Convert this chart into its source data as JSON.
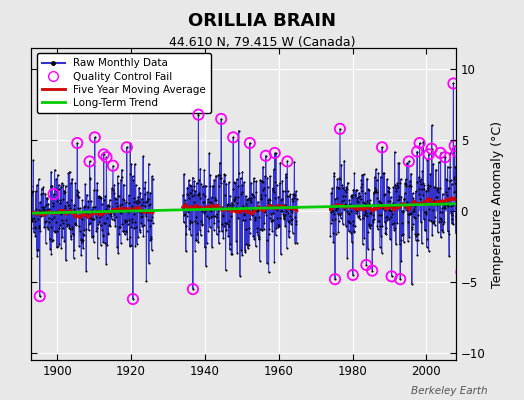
{
  "title": "ORILLIA BRAIN",
  "subtitle": "44.610 N, 79.415 W (Canada)",
  "ylabel": "Temperature Anomaly (°C)",
  "credit": "Berkeley Earth",
  "year_start": 1883,
  "year_end": 2012,
  "ylim": [
    -10.5,
    11.5
  ],
  "yticks": [
    -10,
    -5,
    0,
    5,
    10
  ],
  "xticks": [
    1900,
    1920,
    1940,
    1960,
    1980,
    2000
  ],
  "bg_color": "#e8e8e8",
  "plot_bg": "#e0e0e0",
  "line_color": "#3333cc",
  "dot_color": "#000000",
  "ma_color": "#cc0000",
  "trend_color": "#00cc00",
  "qc_color": "#ff00ff",
  "seed": 17
}
